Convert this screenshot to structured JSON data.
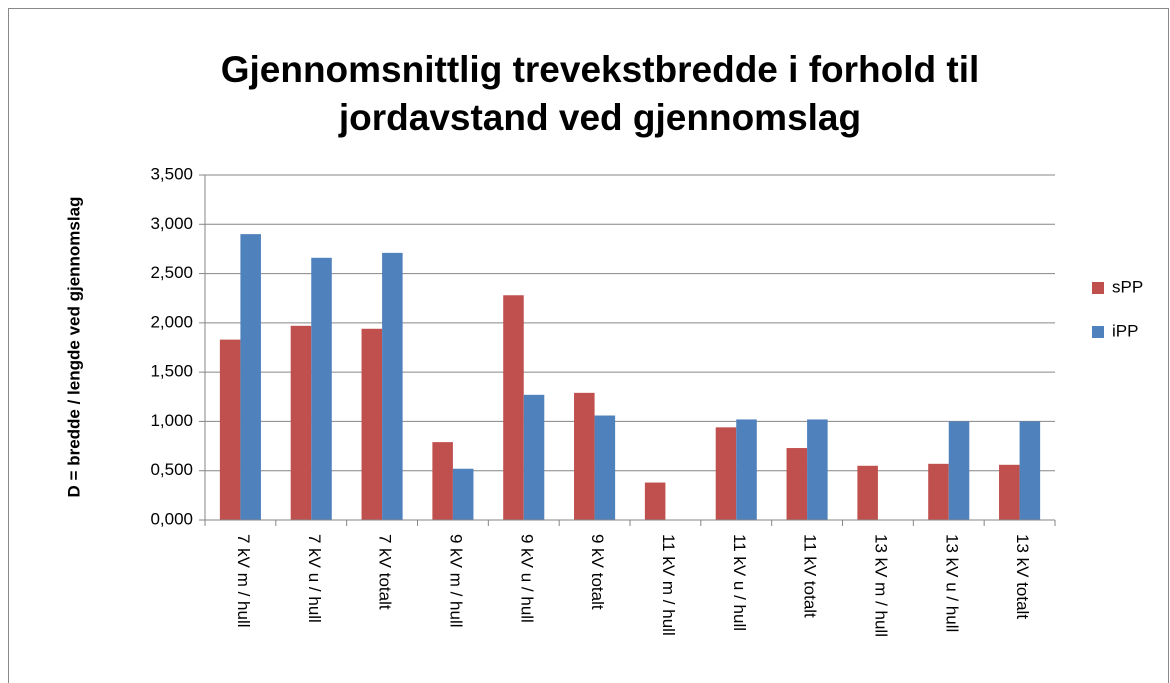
{
  "chart_data": {
    "type": "bar",
    "title": [
      "Gjennomsnittlig trevekstbredde i forhold til",
      "jordavstand ved gjennomslag"
    ],
    "y_label": "D = bredde / lengde  ved gjennomslag",
    "categories": [
      "7 kV m / hull",
      "7 kV u / hull",
      "7 kV totalt",
      "9 kV m / hull",
      "9 kV u / hull",
      "9 kV totalt",
      "11 kV m / hull",
      "11 kV u / hull",
      "11 kV totalt",
      "13 kV m / hull",
      "13 kV u / hull",
      "13 kV totalt"
    ],
    "series": [
      {
        "name": "sPP",
        "color": "#c0504d",
        "values": [
          1.83,
          1.97,
          1.94,
          0.79,
          2.28,
          1.29,
          0.38,
          0.94,
          0.73,
          0.55,
          0.57,
          0.56
        ]
      },
      {
        "name": "iPP",
        "color": "#4f81bd",
        "values": [
          2.9,
          2.66,
          2.71,
          0.52,
          1.27,
          1.06,
          0,
          1.02,
          1.02,
          0,
          1.0,
          1.0
        ]
      }
    ],
    "ylim": [
      0,
      3.5
    ],
    "yticks": [
      {
        "value": 0,
        "label": "0,000"
      },
      {
        "value": 0.5,
        "label": "0,500"
      },
      {
        "value": 1,
        "label": "1,000"
      },
      {
        "value": 1.5,
        "label": "1,500"
      },
      {
        "value": 2,
        "label": "2,000"
      },
      {
        "value": 2.5,
        "label": "2,500"
      },
      {
        "value": 3,
        "label": "3,000"
      },
      {
        "value": 3.5,
        "label": "3,500"
      }
    ],
    "grid": true,
    "legend": "right"
  }
}
